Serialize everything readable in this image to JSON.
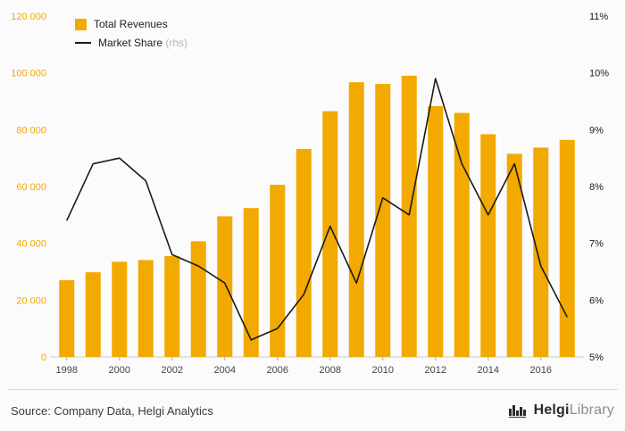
{
  "chart_data": {
    "type": "bar",
    "title": "",
    "categories": [
      "1998",
      "1999",
      "2000",
      "2001",
      "2002",
      "2003",
      "2004",
      "2005",
      "2006",
      "2007",
      "2008",
      "2009",
      "2010",
      "2011",
      "2012",
      "2013",
      "2014",
      "2015",
      "2016",
      "2017"
    ],
    "series": [
      {
        "name": "Total Revenues",
        "type": "bar",
        "axis": "left",
        "color": "#F2A900",
        "values": [
          27000,
          29800,
          33500,
          34100,
          35500,
          40700,
          49500,
          52400,
          60600,
          73200,
          86500,
          96700,
          96100,
          99000,
          88300,
          85900,
          78400,
          71500,
          73700,
          76400
        ]
      },
      {
        "name": "Market Share",
        "type": "line",
        "axis": "right",
        "color": "#1a1a1a",
        "values": [
          7.4,
          8.4,
          8.5,
          8.1,
          6.8,
          6.6,
          6.3,
          5.3,
          5.5,
          6.1,
          7.3,
          6.3,
          7.8,
          7.5,
          9.9,
          8.4,
          7.5,
          8.4,
          6.6,
          5.7
        ]
      }
    ],
    "left_axis": {
      "min": 0,
      "max": 120000,
      "step": 20000,
      "tick_labels": [
        "0",
        "20 000",
        "40 000",
        "60 000",
        "80 000",
        "100 000",
        "120 000"
      ],
      "color": "#F2A900"
    },
    "right_axis": {
      "min": 5,
      "max": 11,
      "step": 1,
      "tick_labels": [
        "5%",
        "6%",
        "7%",
        "8%",
        "9%",
        "10%",
        "11%"
      ],
      "color": "#1a1a1a"
    },
    "x_axis": {
      "labeled_categories": [
        "1998",
        "2000",
        "2002",
        "2004",
        "2006",
        "2008",
        "2010",
        "2012",
        "2014",
        "2016"
      ],
      "label_color": "#444444"
    },
    "grid": false,
    "legend_position": "top-left"
  },
  "legend": {
    "items": [
      {
        "label": "Total Revenues",
        "note": ""
      },
      {
        "label": "Market Share",
        "note": "(rhs)"
      }
    ]
  },
  "footer": {
    "source": "Source: Company Data, Helgi Analytics",
    "logo": {
      "name": "Helgi",
      "suffix": "Library"
    }
  }
}
